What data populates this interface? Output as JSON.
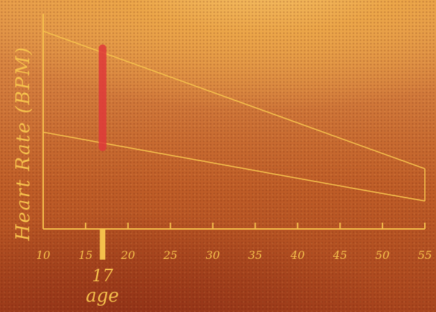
{
  "chart_data": {
    "type": "area",
    "ylabel": "Heart Rate (BPM)",
    "xlabel": "age",
    "xlim": [
      10,
      55
    ],
    "x_ticks": [
      10,
      15,
      20,
      25,
      30,
      35,
      40,
      45,
      50,
      55
    ],
    "x_tick_labels": [
      "10",
      "15",
      "20",
      "25",
      "30",
      "35",
      "40",
      "45",
      "50",
      "55"
    ],
    "series": [
      {
        "values": [
          [
            10,
            0.92
          ],
          [
            55,
            0.28
          ]
        ]
      },
      {
        "values": [
          [
            10,
            0.45
          ],
          [
            45,
            0.2
          ],
          [
            55,
            0.13
          ]
        ]
      }
    ],
    "highlight": {
      "x": 17,
      "label": "17",
      "y_range": [
        0.38,
        0.84
      ],
      "color": "#e0393a"
    },
    "line_color": "#f5c04c",
    "grid": false
  }
}
